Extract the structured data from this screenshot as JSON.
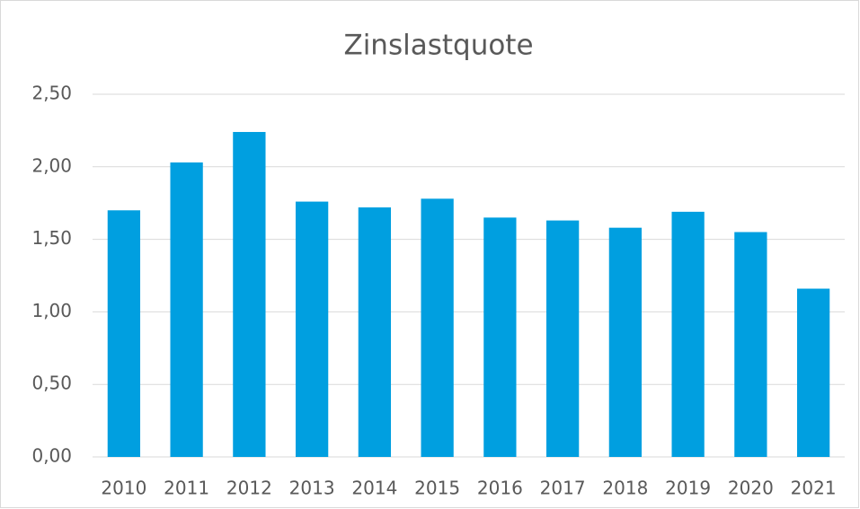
{
  "chart_data": {
    "type": "bar",
    "title": "Zinslastquote",
    "categories": [
      "2010",
      "2011",
      "2012",
      "2013",
      "2014",
      "2015",
      "2016",
      "2017",
      "2018",
      "2019",
      "2020",
      "2021"
    ],
    "values": [
      1.7,
      2.03,
      2.24,
      1.76,
      1.72,
      1.78,
      1.65,
      1.63,
      1.58,
      1.69,
      1.55,
      1.16
    ],
    "color": "#009fe0",
    "ylim": [
      0,
      2.5
    ],
    "yticks": [
      {
        "value": 0,
        "label": "0,00"
      },
      {
        "value": 0.5,
        "label": "0,50"
      },
      {
        "value": 1,
        "label": "1,00"
      },
      {
        "value": 1.5,
        "label": "1,50"
      },
      {
        "value": 2,
        "label": "2,00"
      },
      {
        "value": 2.5,
        "label": "2,50"
      }
    ],
    "grid": true
  }
}
